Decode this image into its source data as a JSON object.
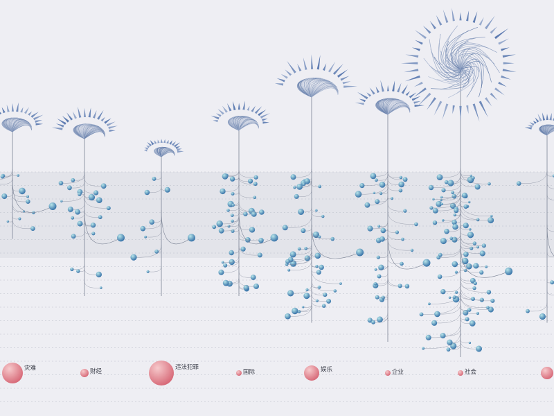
{
  "chart_data": {
    "type": "other",
    "title": "",
    "categories": [
      "灾难",
      "财经",
      "违法犯罪",
      "国际",
      "娱乐",
      "企业",
      "社会",
      ""
    ],
    "fan_size": [
      0.8,
      0.85,
      0.55,
      0.82,
      1.1,
      0.92,
      1.4,
      0.6
    ],
    "node_count": [
      14,
      24,
      9,
      40,
      44,
      40,
      90,
      10
    ],
    "stem_depth": [
      0.38,
      0.68,
      0.68,
      0.68,
      0.82,
      0.92,
      1.0,
      0.82
    ],
    "root_size": [
      15,
      6,
      18,
      4,
      11,
      4,
      4,
      9
    ],
    "colors": {
      "background": "#eeeef3",
      "band": "#e3e4ea",
      "fan_light": "#dfe3ee",
      "fan_dark": "#3d5d94",
      "petal": "#5b7ab0",
      "node_light": "#b9e6ea",
      "node_dark": "#2f6ba4",
      "root_light": "#f7c6c8",
      "root_dark": "#d45a6a",
      "stem": "#7a8294",
      "grid": "#a8adbb"
    }
  }
}
